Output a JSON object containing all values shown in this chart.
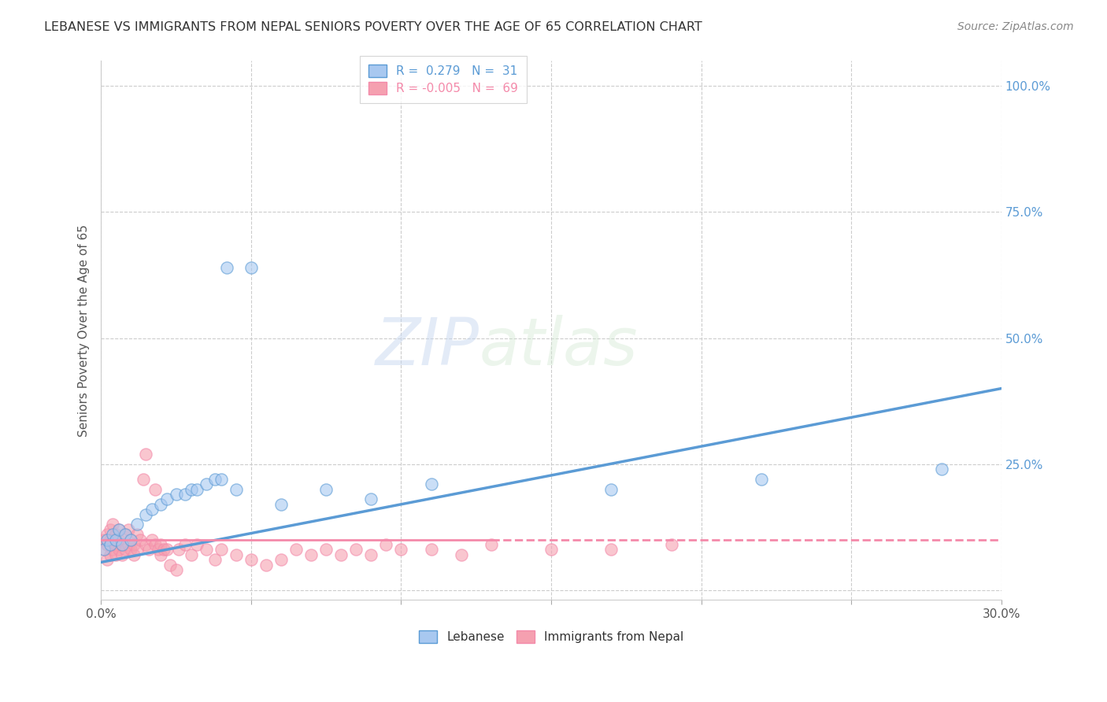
{
  "title": "LEBANESE VS IMMIGRANTS FROM NEPAL SENIORS POVERTY OVER THE AGE OF 65 CORRELATION CHART",
  "source": "Source: ZipAtlas.com",
  "ylabel": "Seniors Poverty Over the Age of 65",
  "xlim": [
    0.0,
    0.3
  ],
  "ylim": [
    -0.02,
    1.05
  ],
  "xticks": [
    0.0,
    0.05,
    0.1,
    0.15,
    0.2,
    0.25,
    0.3
  ],
  "yticks": [
    0.0,
    0.25,
    0.5,
    0.75,
    1.0
  ],
  "legend_R_lebanese": "0.279",
  "legend_N_lebanese": "31",
  "legend_R_nepal": "-0.005",
  "legend_N_nepal": "69",
  "lebanese_color": "#a8c8f0",
  "nepal_color": "#f5a0b0",
  "lebanese_line_color": "#5b9bd5",
  "nepal_line_color": "#f48aaa",
  "grid_color": "#cccccc",
  "lebanese_x": [
    0.001,
    0.002,
    0.003,
    0.004,
    0.005,
    0.006,
    0.007,
    0.008,
    0.01,
    0.012,
    0.015,
    0.017,
    0.02,
    0.022,
    0.025,
    0.028,
    0.03,
    0.032,
    0.035,
    0.038,
    0.04,
    0.042,
    0.045,
    0.05,
    0.06,
    0.075,
    0.09,
    0.11,
    0.17,
    0.22,
    0.28
  ],
  "lebanese_y": [
    0.08,
    0.1,
    0.09,
    0.11,
    0.1,
    0.12,
    0.09,
    0.11,
    0.1,
    0.13,
    0.15,
    0.16,
    0.17,
    0.18,
    0.19,
    0.19,
    0.2,
    0.2,
    0.21,
    0.22,
    0.22,
    0.64,
    0.2,
    0.64,
    0.17,
    0.2,
    0.18,
    0.21,
    0.2,
    0.22,
    0.24
  ],
  "nepal_x": [
    0.001,
    0.001,
    0.002,
    0.002,
    0.002,
    0.003,
    0.003,
    0.003,
    0.004,
    0.004,
    0.004,
    0.005,
    0.005,
    0.005,
    0.006,
    0.006,
    0.006,
    0.007,
    0.007,
    0.008,
    0.008,
    0.009,
    0.009,
    0.01,
    0.01,
    0.011,
    0.011,
    0.012,
    0.012,
    0.013,
    0.014,
    0.015,
    0.015,
    0.016,
    0.017,
    0.018,
    0.018,
    0.019,
    0.02,
    0.02,
    0.021,
    0.022,
    0.023,
    0.025,
    0.026,
    0.028,
    0.03,
    0.032,
    0.035,
    0.038,
    0.04,
    0.045,
    0.05,
    0.055,
    0.06,
    0.065,
    0.07,
    0.075,
    0.08,
    0.085,
    0.09,
    0.095,
    0.1,
    0.11,
    0.12,
    0.13,
    0.15,
    0.17,
    0.19
  ],
  "nepal_y": [
    0.08,
    0.1,
    0.06,
    0.09,
    0.11,
    0.07,
    0.1,
    0.12,
    0.08,
    0.1,
    0.13,
    0.07,
    0.09,
    0.11,
    0.08,
    0.1,
    0.12,
    0.07,
    0.09,
    0.08,
    0.11,
    0.09,
    0.12,
    0.08,
    0.1,
    0.07,
    0.09,
    0.08,
    0.11,
    0.1,
    0.22,
    0.27,
    0.09,
    0.08,
    0.1,
    0.2,
    0.09,
    0.08,
    0.07,
    0.09,
    0.08,
    0.08,
    0.05,
    0.04,
    0.08,
    0.09,
    0.07,
    0.09,
    0.08,
    0.06,
    0.08,
    0.07,
    0.06,
    0.05,
    0.06,
    0.08,
    0.07,
    0.08,
    0.07,
    0.08,
    0.07,
    0.09,
    0.08,
    0.08,
    0.07,
    0.09,
    0.08,
    0.08,
    0.09
  ],
  "lb_trend_x0": 0.0,
  "lb_trend_y0": 0.055,
  "lb_trend_x1": 0.3,
  "lb_trend_y1": 0.4,
  "np_trend_x0": 0.0,
  "np_trend_y0": 0.1,
  "np_trend_x1": 0.3,
  "np_trend_y1": 0.1
}
